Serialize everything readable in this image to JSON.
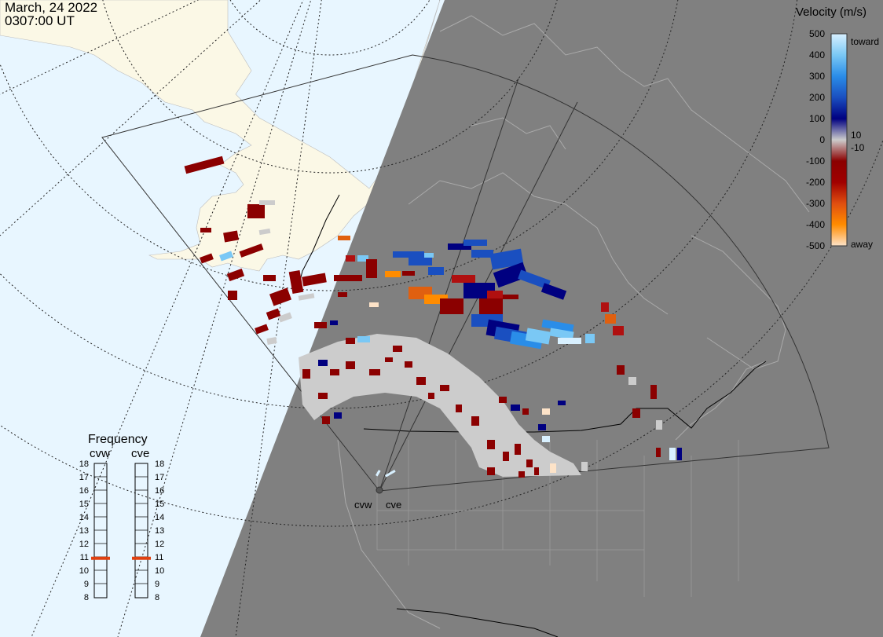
{
  "header": {
    "date": "March, 24 2022",
    "time": "0307:00 UT"
  },
  "colorbar": {
    "title": "Velocity (m/s)",
    "ticks": [
      "500",
      "400",
      "300",
      "200",
      "100",
      "0",
      "-100",
      "-200",
      "-300",
      "-400",
      "-500"
    ],
    "top_label": "toward",
    "bottom_label": "away",
    "inner_pos_label": "10",
    "inner_neg_label": "-10",
    "colors": [
      "#fde3c8",
      "#ff8c00",
      "#e04e10",
      "#a00000",
      "#8b0000",
      "#cccccc",
      "#000080",
      "#1a4fc0",
      "#2a8de8",
      "#7ac8f5",
      "#d8f0ff"
    ]
  },
  "frequency_panel": {
    "title": "Frequency",
    "radars": [
      "cvw",
      "cve"
    ],
    "scale": [
      "18",
      "17",
      "16",
      "15",
      "14",
      "13",
      "12",
      "11",
      "10",
      "9",
      "8"
    ],
    "cvw_level_mhz": 10.9,
    "cve_level_mhz": 10.9,
    "indicator_color": "#e04010"
  },
  "radar_sites": {
    "west_label": "cvw",
    "east_label": "cve"
  },
  "map_colors": {
    "ocean": "#e8f6ff",
    "land": "#fbf8e6",
    "night": "#808080",
    "ground_scatter": "#cccccc"
  }
}
